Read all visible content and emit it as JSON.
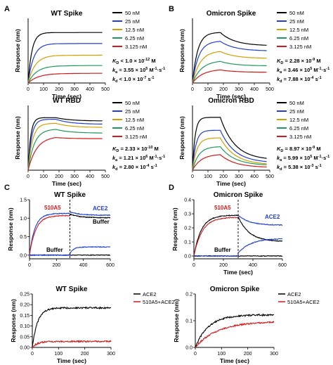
{
  "panels": {
    "A": "A",
    "B": "B",
    "C": "C",
    "D": "D"
  },
  "binding_colors": {
    "50 nM": "#000000",
    "25 nM": "#1f3fd9",
    "12.5 nM": "#d4a000",
    "6.25 nM": "#1f9a5a",
    "3.125 nM": "#d11a1a"
  },
  "kinetics": {
    "wt_spike": {
      "kd": {
        "label": "K",
        "sub": "D",
        "value": " < 1.0 × 10",
        "exp": "-12",
        "unit": " M"
      },
      "ka": {
        "label": "k",
        "sub": "a",
        "value": " = 3.55 × 10",
        "exp": "5",
        "unit": " M",
        "unit_exp": "-1",
        "unit2": "·s",
        "unit2_exp": "-1"
      },
      "kdis": {
        "label": "k",
        "sub": "d",
        "value": " < 1.0 × 10",
        "exp": "-7",
        "unit": " s",
        "unit_exp": "-1"
      }
    },
    "omicron_spike": {
      "kd": {
        "label": "K",
        "sub": "D",
        "value": " = 2.28 × 10",
        "exp": "-9",
        "unit": " M"
      },
      "ka": {
        "label": "k",
        "sub": "a",
        "value": " = 3.46 × 10",
        "exp": "5",
        "unit": " M",
        "unit_exp": "-1",
        "unit2": "·s",
        "unit2_exp": "-1"
      },
      "kdis": {
        "label": "k",
        "sub": "d",
        "value": " = 7.88 × 10",
        "exp": "-4",
        "unit": " s",
        "unit_exp": "-1"
      }
    },
    "wt_rbd": {
      "kd": {
        "label": "K",
        "sub": "D",
        "value": " = 2.33 × 10",
        "exp": "-10",
        "unit": " M"
      },
      "ka": {
        "label": "k",
        "sub": "a",
        "value": " = 1.21 × 10",
        "exp": "6",
        "unit": " M",
        "unit_exp": "-1",
        "unit2": "·s",
        "unit2_exp": "-1"
      },
      "kdis": {
        "label": "k",
        "sub": "d",
        "value": " = 2.80 × 10",
        "exp": "-4",
        "unit": " s",
        "unit_exp": "-1"
      }
    },
    "omicron_rbd": {
      "kd": {
        "label": "K",
        "sub": "D",
        "value": " = 8.97 × 10",
        "exp": "-9",
        "unit": " M"
      },
      "ka": {
        "label": "k",
        "sub": "a",
        "value": " = 5.99 × 10",
        "exp": "5",
        "unit": " M",
        "unit_exp": "-1",
        "unit2": "·s",
        "unit2_exp": "-1"
      },
      "kdis": {
        "label": "k",
        "sub": "d",
        "value": " = 5.38 × 10",
        "exp": "-3",
        "unit": " s",
        "unit_exp": "-1"
      }
    }
  },
  "chart_data": [
    {
      "id": "wt_spike",
      "type": "line",
      "title": "WT Spike",
      "xlabel": "Time (sec)",
      "ylabel": "Response (nm)",
      "xlim": [
        0,
        500
      ],
      "ylim": [
        0,
        1.0
      ],
      "xticks": [
        "0",
        "100",
        "200",
        "300",
        "400",
        "500"
      ],
      "yticks": [],
      "legend_placement": "right",
      "association_end": 180,
      "series": [
        {
          "name": "50 nM",
          "plateau": 0.78,
          "end": 0.78,
          "ka": 0.04
        },
        {
          "name": "25 nM",
          "plateau": 0.61,
          "end": 0.61,
          "ka": 0.028
        },
        {
          "name": "12.5 nM",
          "plateau": 0.43,
          "end": 0.43,
          "ka": 0.022
        },
        {
          "name": "6.25 nM",
          "plateau": 0.27,
          "end": 0.27,
          "ka": 0.018
        },
        {
          "name": "3.125 nM",
          "plateau": 0.15,
          "end": 0.15,
          "ka": 0.015
        }
      ]
    },
    {
      "id": "omicron_spike",
      "type": "line",
      "title": "Omicron Spike",
      "xlabel": "Time (sec)",
      "ylabel": "Response (nm)",
      "xlim": [
        0,
        500
      ],
      "ylim": [
        0,
        0.6
      ],
      "xticks": [
        "0",
        "100",
        "200",
        "300",
        "400",
        "500"
      ],
      "yticks": [],
      "legend_placement": "right",
      "association_end": 180,
      "series": [
        {
          "name": "50 nM",
          "plateau": 0.47,
          "end": 0.35,
          "ka": 0.03
        },
        {
          "name": "25 nM",
          "plateau": 0.39,
          "end": 0.3,
          "ka": 0.025
        },
        {
          "name": "12.5 nM",
          "plateau": 0.3,
          "end": 0.23,
          "ka": 0.02
        },
        {
          "name": "6.25 nM",
          "plateau": 0.21,
          "end": 0.16,
          "ka": 0.017
        },
        {
          "name": "3.125 nM",
          "plateau": 0.13,
          "end": 0.1,
          "ka": 0.015
        }
      ]
    },
    {
      "id": "wt_rbd",
      "type": "line",
      "title": "WT RBD",
      "xlabel": "Time (sec)",
      "ylabel": "Response (nm)",
      "xlim": [
        0,
        500
      ],
      "ylim": [
        0,
        0.8
      ],
      "xticks": [
        "0",
        "100",
        "200",
        "300",
        "400",
        "500"
      ],
      "yticks": [],
      "legend_placement": "right",
      "association_end": 180,
      "series": [
        {
          "name": "50 nM",
          "plateau": 0.65,
          "end": 0.61,
          "ka": 0.06
        },
        {
          "name": "25 nM",
          "plateau": 0.63,
          "end": 0.57,
          "ka": 0.045
        },
        {
          "name": "12.5 nM",
          "plateau": 0.58,
          "end": 0.53,
          "ka": 0.035
        },
        {
          "name": "6.25 nM",
          "plateau": 0.51,
          "end": 0.46,
          "ka": 0.025
        },
        {
          "name": "3.125 nM",
          "plateau": 0.42,
          "end": 0.39,
          "ka": 0.018
        }
      ]
    },
    {
      "id": "omicron_rbd",
      "type": "line",
      "title": "Omicron RBD",
      "xlabel": "Time (sec)",
      "ylabel": "Response (nm)",
      "xlim": [
        0,
        500
      ],
      "ylim": [
        0,
        0.6
      ],
      "xticks": [
        "0",
        "100",
        "200",
        "300",
        "400",
        "500"
      ],
      "yticks": [],
      "legend_placement": "right",
      "association_end": 180,
      "series": [
        {
          "name": "50 nM",
          "plateau": 0.49,
          "end": 0.11,
          "ka": 0.06
        },
        {
          "name": "25 nM",
          "plateau": 0.37,
          "end": 0.08,
          "ka": 0.045
        },
        {
          "name": "12.5 nM",
          "plateau": 0.3,
          "end": 0.06,
          "ka": 0.035
        },
        {
          "name": "6.25 nM",
          "plateau": 0.22,
          "end": 0.05,
          "ka": 0.025
        },
        {
          "name": "3.125 nM",
          "plateau": 0.15,
          "end": 0.03,
          "ka": 0.018
        }
      ]
    },
    {
      "id": "c_top",
      "type": "line",
      "title": "WT Spike",
      "xlabel": "",
      "ylabel": "Response (nm)",
      "xlim": [
        0,
        600
      ],
      "ylim": [
        -0.1,
        1.5
      ],
      "xticks": [
        "0",
        "200",
        "400",
        "600"
      ],
      "yticks": [
        "0.0",
        "0.5",
        "1.0",
        "1.5"
      ],
      "switch_time": 300,
      "annotations": [
        {
          "text": "510A5",
          "color": "#d11a1a"
        },
        {
          "text": "ACE2",
          "color": "#1f3fd9"
        },
        {
          "text": "Buffer",
          "color": "#000000"
        },
        {
          "text": "Buffer",
          "color": "#000000"
        }
      ],
      "series": [
        {
          "kind": "blue_left",
          "color": "#1f3fd9",
          "plateau": 1.13,
          "k": 0.025
        },
        {
          "kind": "red_left",
          "color": "#d11a1a",
          "plateau": 1.07,
          "k": 0.022
        },
        {
          "kind": "blue_right_top",
          "color": "#1f3fd9",
          "start": 1.17,
          "end": 1.08
        },
        {
          "kind": "black_right_top",
          "color": "#000000",
          "start": 1.11,
          "end": 1.01
        },
        {
          "kind": "black_baseline",
          "color": "#000000",
          "value": 0.0
        },
        {
          "kind": "blue_rise",
          "color": "#1f3fd9",
          "start": 0.03,
          "plateau": 0.22,
          "k": 0.04
        }
      ]
    },
    {
      "id": "d_top",
      "type": "line",
      "title": "Omicron Spike",
      "xlabel": "Time (sec)",
      "ylabel": "Response (nm)",
      "xlim": [
        0,
        600
      ],
      "ylim": [
        -0.02,
        0.4
      ],
      "xticks": [
        "0",
        "200",
        "400",
        "600"
      ],
      "yticks": [
        "0.0",
        "0.1",
        "0.2",
        "0.3",
        "0.4"
      ],
      "switch_time": 300,
      "annotations": [
        {
          "text": "510A5",
          "color": "#d11a1a"
        },
        {
          "text": "ACE2",
          "color": "#1f3fd9"
        },
        {
          "text": "Buffer",
          "color": "#000000"
        }
      ],
      "series": [
        {
          "kind": "black_left",
          "color": "#000000",
          "plateau": 0.29,
          "k": 0.02
        },
        {
          "kind": "red_left",
          "color": "#d11a1a",
          "plateau": 0.275,
          "k": 0.018
        },
        {
          "kind": "blue_right_top",
          "color": "#1f3fd9",
          "start": 0.29,
          "end": 0.22
        },
        {
          "kind": "black_right_top",
          "color": "#000000",
          "start": 0.28,
          "end": 0.105
        },
        {
          "kind": "black_baseline",
          "color": "#000000",
          "value": 0.0
        },
        {
          "kind": "blue_rise",
          "color": "#1f3fd9",
          "start": 0.02,
          "plateau": 0.125,
          "k": 0.012
        }
      ]
    },
    {
      "id": "c_bottom",
      "type": "line",
      "title": "WT Spike",
      "xlabel": "Time (sec)",
      "ylabel": "Response (nm)",
      "xlim": [
        0,
        300
      ],
      "ylim": [
        0,
        0.25
      ],
      "xticks": [
        "0",
        "100",
        "200",
        "300"
      ],
      "yticks": [
        "0.00",
        "0.05",
        "0.10",
        "0.15",
        "0.20",
        "0.25"
      ],
      "legend_placement": "top-right",
      "series": [
        {
          "name": "ACE2",
          "color": "#000000",
          "plateau": 0.185,
          "k": 0.05
        },
        {
          "name": "510A5+ACE2",
          "color": "#d11a1a",
          "plateau": 0.028,
          "k": 0.05
        }
      ]
    },
    {
      "id": "d_bottom",
      "type": "line",
      "title": "Omicron Spike",
      "xlabel": "Time (sec)",
      "ylabel": "Response (nm)",
      "xlim": [
        0,
        300
      ],
      "ylim": [
        0,
        0.2
      ],
      "xticks": [
        "0",
        "100",
        "200",
        "300"
      ],
      "yticks": [
        "0.0",
        "0.1",
        "0.2"
      ],
      "legend_placement": "top-right",
      "series": [
        {
          "name": "ACE2",
          "color": "#000000",
          "plateau": 0.122,
          "k": 0.02
        },
        {
          "name": "510A5+ACE2",
          "color": "#d11a1a",
          "plateau": 0.097,
          "k": 0.012
        }
      ]
    }
  ]
}
